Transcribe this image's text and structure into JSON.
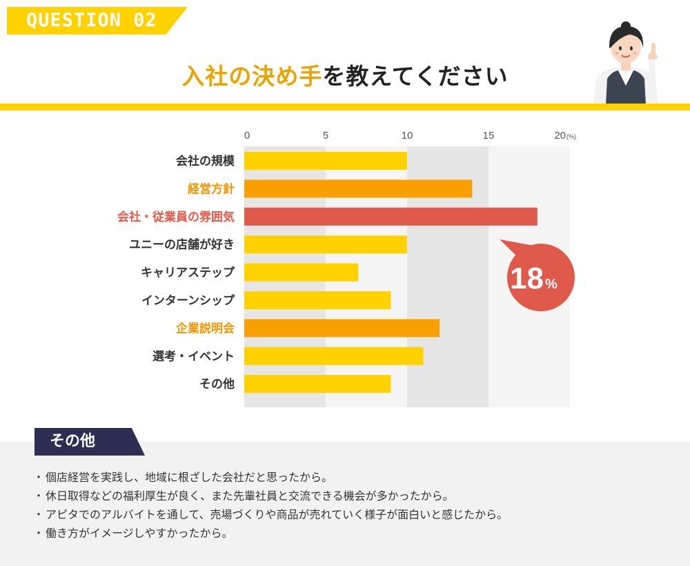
{
  "header": {
    "badge": "QUESTION 02",
    "title_highlight": "入社の決め手",
    "title_rest": "を教えてください"
  },
  "colors": {
    "yellow": "#ffd200",
    "orange": "#f7a000",
    "red": "#df5a4b",
    "highlight_text_orange": "#f29600",
    "highlight_text_red": "#df5a4b",
    "navy": "#2e2e55"
  },
  "chart_data": {
    "type": "bar",
    "orientation": "horizontal",
    "unit": "(%)",
    "xlim": [
      0,
      20
    ],
    "ticks": [
      "0",
      "5",
      "10",
      "15",
      "20"
    ],
    "categories": [
      "会社の規模",
      "経営方針",
      "会社・従業員の雰囲気",
      "ユニーの店舗が好き",
      "キャリアステップ",
      "インターンシップ",
      "企業説明会",
      "選考・イベント",
      "その他"
    ],
    "values": [
      10,
      14,
      18,
      10,
      7,
      9,
      12,
      11,
      9
    ],
    "bar_colors": [
      "#ffd200",
      "#f7a000",
      "#df5a4b",
      "#ffd200",
      "#ffd200",
      "#ffd200",
      "#f7a000",
      "#ffd200",
      "#ffd200"
    ],
    "label_colors": [
      "#333333",
      "#f29600",
      "#df5a4b",
      "#333333",
      "#333333",
      "#333333",
      "#f29600",
      "#333333",
      "#333333"
    ],
    "callout": {
      "value": "18",
      "unit": "%"
    }
  },
  "other": {
    "title": "その他",
    "bullet": "・",
    "items": [
      "個店経営を実践し、地域に根ざした会社だと思ったから。",
      "休日取得などの福利厚生が良く、また先輩社員と交流できる機会が多かったから。",
      "アピタでのアルバイトを通して、売場づくりや商品が売れていく様子が面白いと感じたから。",
      "働き方がイメージしやすかったから。"
    ]
  }
}
